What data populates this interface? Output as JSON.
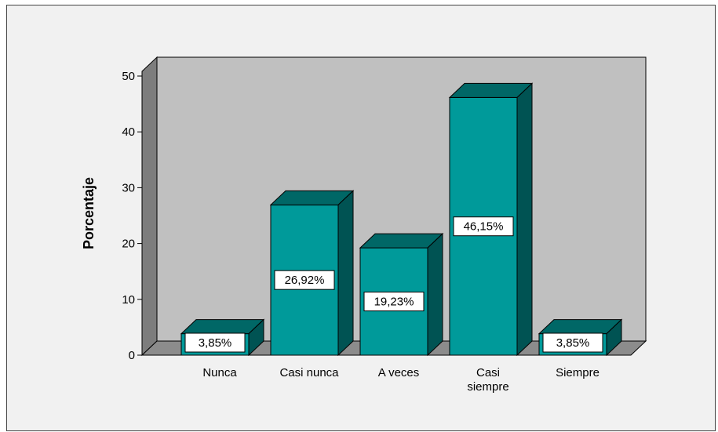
{
  "chart_data": {
    "type": "bar",
    "categories": [
      "Nunca",
      "Casi nunca",
      "A veces",
      "Casi siempre",
      "Siempre"
    ],
    "category_lines": [
      [
        "Nunca"
      ],
      [
        "Casi nunca"
      ],
      [
        "A veces"
      ],
      [
        "Casi",
        "siempre"
      ],
      [
        "Siempre"
      ]
    ],
    "values": [
      3.85,
      26.92,
      19.23,
      46.15,
      3.85
    ],
    "data_labels": [
      "3,85%",
      "26,92%",
      "19,23%",
      "46,15%",
      "3,85%"
    ],
    "title": "",
    "xlabel": "",
    "ylabel": "Porcentaje",
    "ylim": [
      0,
      50
    ],
    "yticks": [
      0,
      10,
      20,
      30,
      40,
      50
    ],
    "grid": false,
    "style": "3d",
    "colors": {
      "bar_front": "#009a9a",
      "bar_top": "#006766",
      "bar_side": "#005353",
      "wall": "#c0c0c0",
      "floor": "#8c8c8c",
      "left_wall": "#7d7d7d",
      "background": "#f1f1f1"
    }
  }
}
